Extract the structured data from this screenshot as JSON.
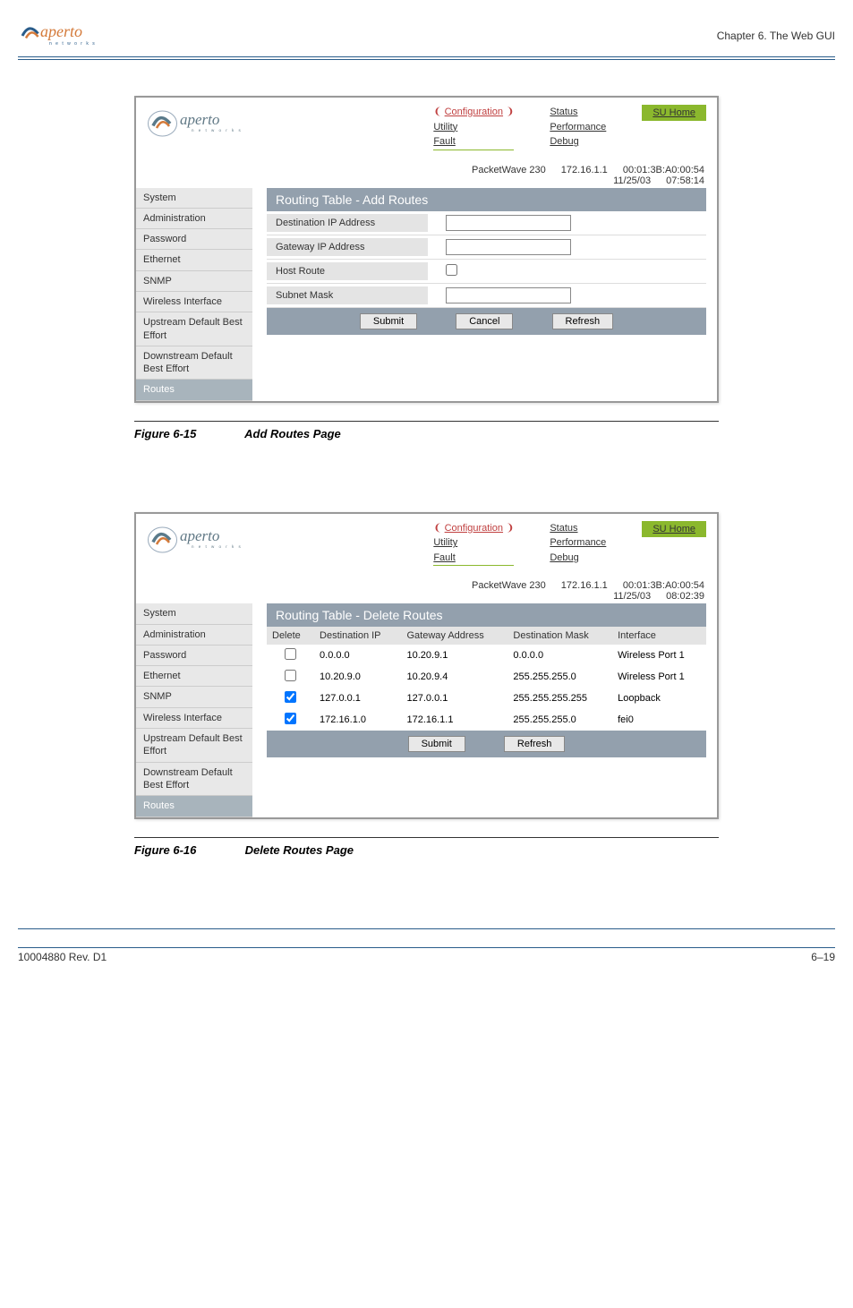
{
  "header": {
    "chapter": "Chapter 6.  The Web GUI"
  },
  "logo": {
    "brand": "aperto",
    "tag": "n e t w o r k s"
  },
  "nav": {
    "col1": [
      "Configuration",
      "Utility",
      "Fault"
    ],
    "col2": [
      "Status",
      "Performance",
      "Debug"
    ],
    "home": "SU Home"
  },
  "sidebar": {
    "items": [
      "System",
      "Administration",
      "Password",
      "Ethernet",
      "SNMP",
      "Wireless Interface",
      "Upstream Default Best Effort",
      "Downstream Default Best Effort",
      "Routes"
    ]
  },
  "fig1": {
    "status": {
      "device": "PacketWave 230",
      "ip": "172.16.1.1",
      "mac": "00:01:3B:A0:00:54",
      "date": "11/25/03",
      "time": "07:58:14"
    },
    "title": "Routing Table - Add Routes",
    "rows": {
      "dest": "Destination IP Address",
      "gw": "Gateway IP Address",
      "host": "Host Route",
      "mask": "Subnet Mask"
    },
    "buttons": {
      "submit": "Submit",
      "cancel": "Cancel",
      "refresh": "Refresh"
    },
    "caption_num": "Figure 6-15",
    "caption_txt": "Add Routes Page"
  },
  "fig2": {
    "status": {
      "device": "PacketWave 230",
      "ip": "172.16.1.1",
      "mac": "00:01:3B:A0:00:54",
      "date": "11/25/03",
      "time": "08:02:39"
    },
    "title": "Routing Table - Delete Routes",
    "cols": [
      "Delete",
      "Destination IP",
      "Gateway Address",
      "Destination Mask",
      "Interface"
    ],
    "rows": [
      {
        "chk": false,
        "dest": "0.0.0.0",
        "gw": "10.20.9.1",
        "mask": "0.0.0.0",
        "if": "Wireless Port 1"
      },
      {
        "chk": false,
        "dest": "10.20.9.0",
        "gw": "10.20.9.4",
        "mask": "255.255.255.0",
        "if": "Wireless Port 1"
      },
      {
        "chk": true,
        "dest": "127.0.0.1",
        "gw": "127.0.0.1",
        "mask": "255.255.255.255",
        "if": "Loopback"
      },
      {
        "chk": true,
        "dest": "172.16.1.0",
        "gw": "172.16.1.1",
        "mask": "255.255.255.0",
        "if": "fei0"
      }
    ],
    "buttons": {
      "submit": "Submit",
      "refresh": "Refresh"
    },
    "caption_num": "Figure 6-16",
    "caption_txt": "Delete Routes Page"
  },
  "footer": {
    "left": "10004880 Rev. D1",
    "right": "6–19"
  }
}
